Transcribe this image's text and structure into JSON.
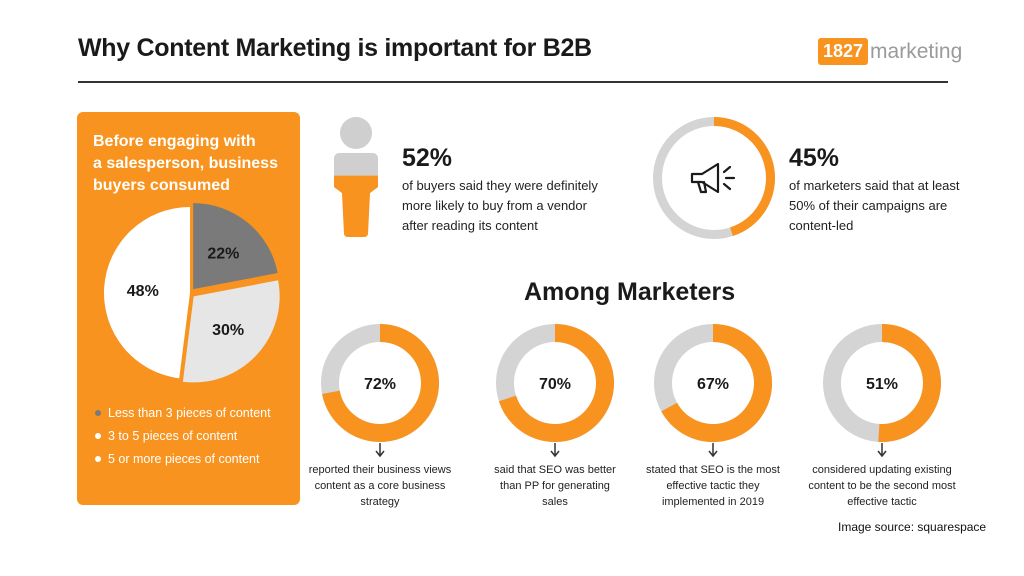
{
  "title": "Why Content Marketing is important for B2B",
  "logo": {
    "number": "1827",
    "word": "marketing",
    "accent": "#f7931e"
  },
  "colors": {
    "orange": "#f7931e",
    "track": "#d4d4d4",
    "dark": "#7a7a7a",
    "light": "#e6e6e6"
  },
  "chart_data": [
    {
      "type": "pie",
      "title": "Before engaging with a salesperson, business buyers consumed",
      "categories": [
        "Less than 3 pieces of content",
        "3 to 5 pieces of content",
        "5 or more pieces of content"
      ],
      "values": [
        22,
        30,
        48
      ],
      "labels": [
        "22%",
        "30%",
        "48%"
      ],
      "colors": [
        "#7a7a7a",
        "#e6e6e6",
        "#ffffff"
      ]
    },
    {
      "type": "pie",
      "title": "52%",
      "values": [
        52
      ],
      "caption": "of buyers said they were definitely more likely to buy from a vendor after reading its content"
    },
    {
      "type": "pie",
      "title": "45%",
      "values": [
        45
      ],
      "caption": "of marketers said that at least 50% of their campaigns are content-led"
    },
    {
      "type": "pie",
      "title": "Among Marketers",
      "categories": [
        "reported their business views content as a core business strategy",
        "said that SEO was better than PP for generating sales",
        "stated that SEO is the most effective tactic they implemented in 2019",
        "considered updating existing content to be the second most effective tactic"
      ],
      "values": [
        72,
        70,
        67,
        51
      ],
      "labels": [
        "72%",
        "70%",
        "67%",
        "51%"
      ]
    }
  ],
  "stat_buyers": {
    "value": "52%",
    "lines": [
      "of buyers said they were definitely",
      "more likely to buy from a vendor",
      "after reading its content"
    ]
  },
  "stat_marketers": {
    "value": "45%",
    "lines": [
      "of marketers said that at least",
      "50% of their campaigns are",
      "content-led"
    ]
  },
  "panel": {
    "heading_lines": [
      "Before engaging with",
      "a salesperson, business",
      "buyers consumed"
    ]
  },
  "rings": [
    {
      "lines": [
        "reported their business views",
        "content as a core business",
        "strategy"
      ]
    },
    {
      "lines": [
        "said that SEO was better",
        "than PP for generating",
        "sales"
      ]
    },
    {
      "lines": [
        "stated that SEO is the most",
        "effective tactic they",
        "implemented in 2019"
      ]
    },
    {
      "lines": [
        "considered updating existing",
        "content to be the second most",
        "effective tactic"
      ]
    }
  ],
  "source": "Image source: squarespace"
}
